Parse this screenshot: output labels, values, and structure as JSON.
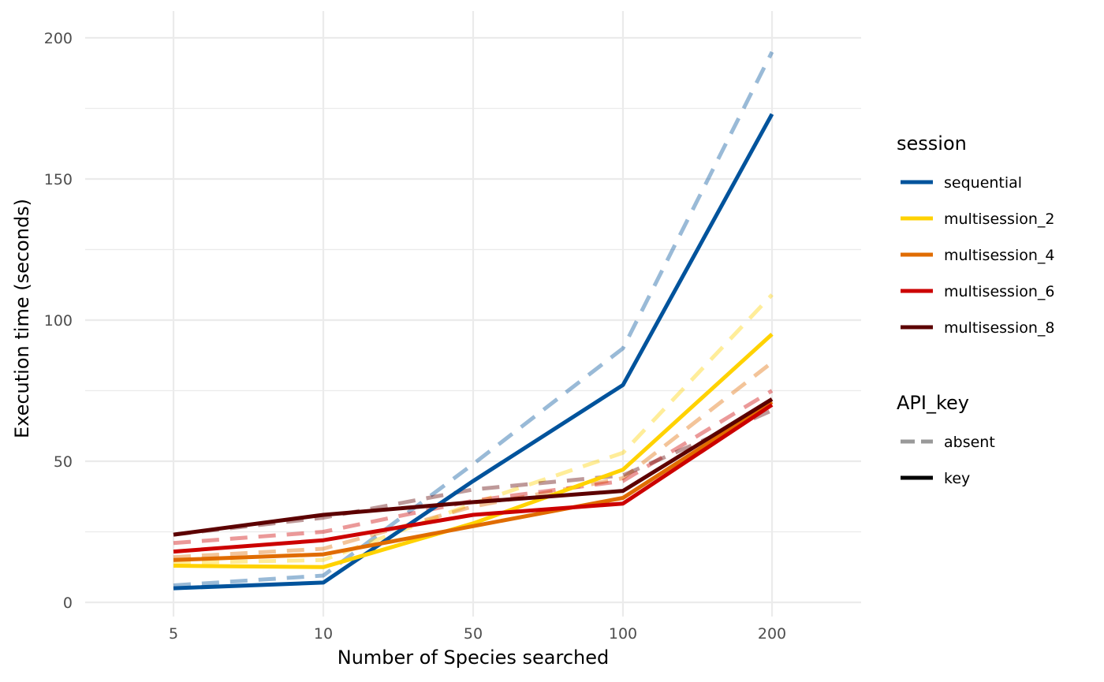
{
  "chart_data": {
    "type": "line",
    "title": "",
    "xlabel": "Number of Species searched",
    "ylabel": "Execution time (seconds)",
    "categories": [
      "5",
      "10",
      "50",
      "100",
      "200"
    ],
    "y_ticks": [
      0,
      50,
      100,
      150,
      200
    ],
    "y_tick_labels": [
      "0",
      "50",
      "100",
      "150",
      "200"
    ],
    "ylim": [
      -3,
      205
    ],
    "grid": true,
    "legend": {
      "placement": "right",
      "groups": [
        {
          "title": "session",
          "entries": [
            {
              "label": "sequential",
              "color": "#00539C"
            },
            {
              "label": "multisession_2",
              "color": "#FFD200"
            },
            {
              "label": "multisession_4",
              "color": "#E06C00"
            },
            {
              "label": "multisession_6",
              "color": "#CC0000"
            },
            {
              "label": "multisession_8",
              "color": "#5C0000"
            }
          ]
        },
        {
          "title": "API_key",
          "entries": [
            {
              "label": "absent",
              "style": "dashed",
              "color": "#999999"
            },
            {
              "label": "key",
              "style": "solid",
              "color": "#000000"
            }
          ]
        }
      ]
    },
    "series": [
      {
        "session": "sequential",
        "api_key": "absent",
        "color": "#00539C",
        "values": [
          6,
          9.5,
          49,
          90,
          195
        ]
      },
      {
        "session": "multisession_2",
        "api_key": "absent",
        "color": "#FFD200",
        "values": [
          14,
          15,
          35,
          53,
          109
        ]
      },
      {
        "session": "multisession_4",
        "api_key": "absent",
        "color": "#E06C00",
        "values": [
          16,
          19,
          34,
          44,
          85
        ]
      },
      {
        "session": "multisession_6",
        "api_key": "absent",
        "color": "#CC0000",
        "values": [
          21,
          25,
          36,
          43,
          75
        ]
      },
      {
        "session": "multisession_8",
        "api_key": "absent",
        "color": "#5C0000",
        "values": [
          24,
          30,
          40,
          45,
          68
        ]
      },
      {
        "session": "sequential",
        "api_key": "key",
        "color": "#00539C",
        "values": [
          5,
          7,
          43,
          77,
          173
        ]
      },
      {
        "session": "multisession_2",
        "api_key": "key",
        "color": "#FFD200",
        "values": [
          13,
          12.5,
          28,
          47,
          95
        ]
      },
      {
        "session": "multisession_4",
        "api_key": "key",
        "color": "#E06C00",
        "values": [
          15,
          17,
          27,
          37,
          71
        ]
      },
      {
        "session": "multisession_6",
        "api_key": "key",
        "color": "#CC0000",
        "values": [
          18,
          22,
          31,
          35,
          70
        ]
      },
      {
        "session": "multisession_8",
        "api_key": "key",
        "color": "#5C0000",
        "values": [
          24,
          31,
          35.5,
          39.5,
          72
        ]
      }
    ]
  }
}
